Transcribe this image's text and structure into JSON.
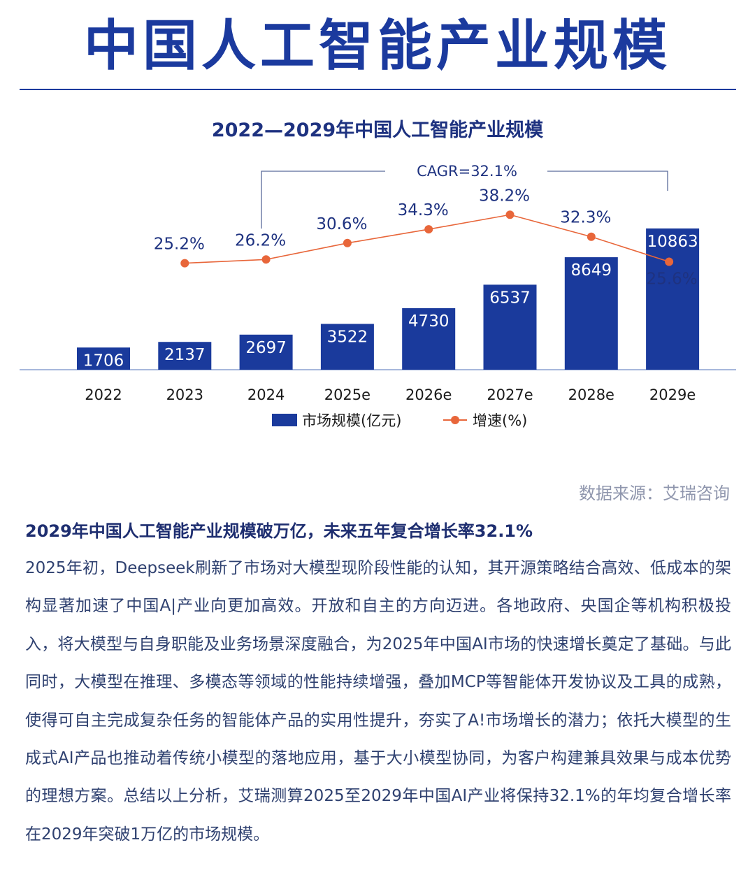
{
  "page": {
    "title": "中国人工智能产业规模",
    "source": "数据来源：艾瑞咨询",
    "headline": "2029年中国人工智能产业规模破万亿，未来五年复合增长率32.1%",
    "body": "2025年初，Deepseek刷新了市场对大模型现阶段性能的认知，其开源策略结合高效、低成本的架构显著加速了中国A|产业向更加高效。开放和自主的方向迈进。各地政府、央国企等机构积极投入，将大模型与自身职能及业务场景深度融合，为2025年中国AI市场的快速增长奠定了基础。与此同时，大模型在推理、多模态等领域的性能持续增强，叠加MCP等智能体开发协议及工具的成熟，使得可自主完成复杂任务的智能体产品的实用性提升，夯实了A!市场增长的潜力；依托大模型的生成式AI产品也推动着传统小模型的落地应用，基于大小模型协同，为客户构建兼具效果与成本优势的理想方案。总结以上分析，艾瑞测算2025至2029年中国AI产业将保持32.1%的年均复合增长率在2029年突破1万亿的市场规模。"
  },
  "chart_data": {
    "type": "bar",
    "title": "2022—2029年中国人工智能产业规模",
    "categories": [
      "2022",
      "2023",
      "2024",
      "2025e",
      "2026e",
      "2027e",
      "2028e",
      "2029e"
    ],
    "series": [
      {
        "name": "市场规模(亿元)",
        "kind": "bar",
        "values": [
          1706,
          2137,
          2697,
          3522,
          4730,
          6537,
          8649,
          10863
        ]
      },
      {
        "name": "增速(%)",
        "kind": "line",
        "values": [
          null,
          25.2,
          26.2,
          30.6,
          34.3,
          38.2,
          32.3,
          25.6
        ]
      }
    ],
    "annotation": "CAGR=32.1%",
    "ylim": [
      0,
      11500
    ],
    "grid": false,
    "legend_position": "bottom",
    "colors": {
      "bar": "#1a3a9c",
      "line": "#e8663a"
    }
  }
}
